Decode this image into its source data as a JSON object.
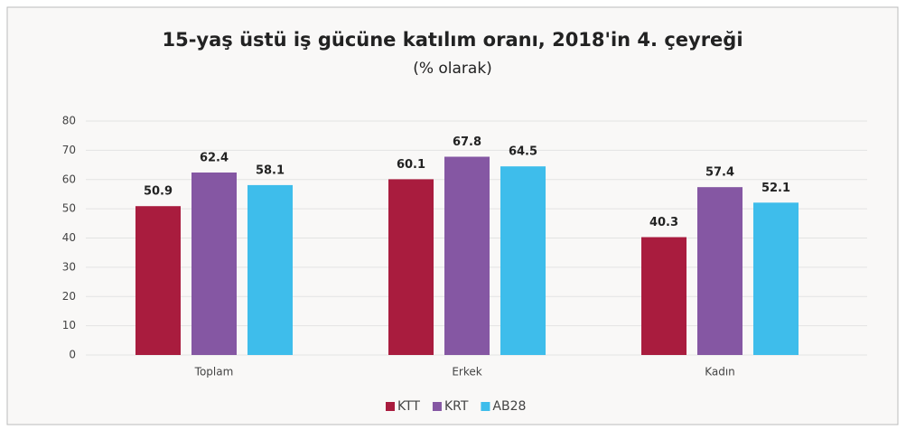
{
  "chart_data": {
    "type": "bar",
    "title": "15-yaş üstü iş gücüne katılım oranı, 2018'in 4. çeyreği",
    "subtitle": "(% olarak)",
    "categories": [
      "Toplam",
      "Erkek",
      "Kadın"
    ],
    "series": [
      {
        "name": "KTT",
        "color": "#a91c3e",
        "values": [
          50.9,
          60.1,
          40.3
        ]
      },
      {
        "name": "KRT",
        "color": "#8557a3",
        "values": [
          62.4,
          67.8,
          57.4
        ]
      },
      {
        "name": "AB28",
        "color": "#3ebdeb",
        "values": [
          58.1,
          64.5,
          52.1
        ]
      }
    ],
    "ylim": [
      0,
      80
    ],
    "yticks": [
      0,
      10,
      20,
      30,
      40,
      50,
      60,
      70,
      80
    ],
    "grid": true,
    "legend": "bottom"
  }
}
